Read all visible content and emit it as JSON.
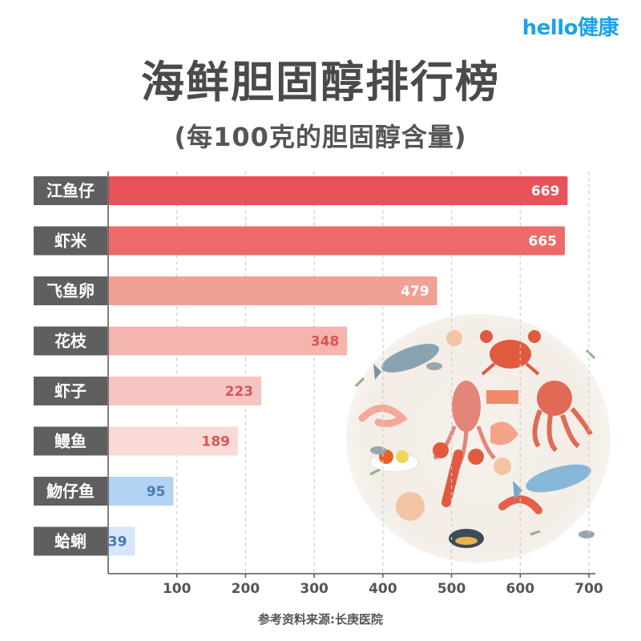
{
  "brand": {
    "hello": "hello",
    "jk": "健康"
  },
  "title": "海鲜胆固醇排行榜",
  "subtitle": "(每100克的胆固醇含量)",
  "source": "参考资料来源:长庚医院",
  "illustration": {
    "icon": "seafood-illustration-icon"
  },
  "chart_data": {
    "type": "bar",
    "orientation": "horizontal",
    "categories": [
      "江鱼仔",
      "虾米",
      "飞鱼卵",
      "花枝",
      "虾子",
      "鳗鱼",
      "魩仔鱼",
      "蛤蜊"
    ],
    "values": [
      669,
      665,
      479,
      348,
      223,
      189,
      95,
      39
    ],
    "value_labels": [
      "669",
      "665",
      "479",
      "348",
      "223",
      "189",
      "95",
      "39"
    ],
    "colors": [
      "#e8525a",
      "#ec6b69",
      "#f0a193",
      "#f3b5ad",
      "#f6c4c1",
      "#fadad7",
      "#b3d3f2",
      "#d6e7f8"
    ],
    "label_colors": [
      "#ffffff",
      "#ffffff",
      "#ffffff",
      "#d85656",
      "#d85656",
      "#d85656",
      "#4a79b5",
      "#4a79b5"
    ],
    "xlim": [
      0,
      700
    ],
    "xticks": [
      "100",
      "200",
      "300",
      "400",
      "500",
      "600",
      "700"
    ],
    "xtick_values": [
      100,
      200,
      300,
      400,
      500,
      600,
      700
    ],
    "grid": "dashed vertical"
  }
}
